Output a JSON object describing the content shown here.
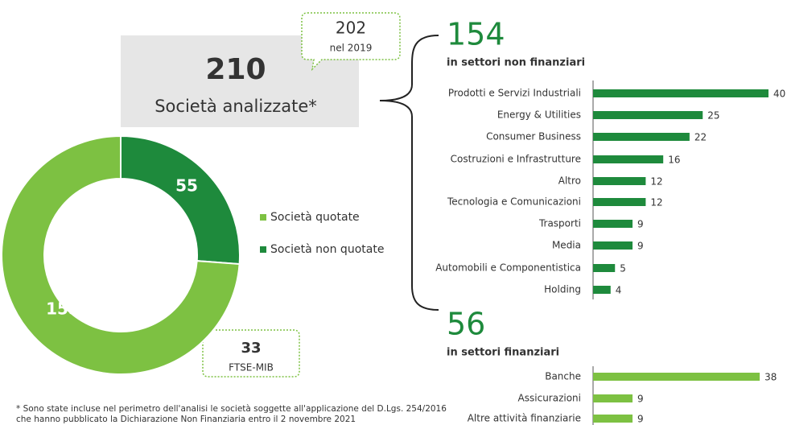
{
  "total": {
    "value": 210,
    "label": "Società analizzate*"
  },
  "comparison": {
    "value": 202,
    "label": "nel 2019"
  },
  "ftse": {
    "value": 33,
    "label": "FTSE-MIB"
  },
  "footnote": [
    "* Sono state incluse nel perimetro dell'analisi le società soggette all'applicazione del D.Lgs. 254/2016",
    "che hanno pubblicato la Dichiarazione Non Finanziaria entro il 2 novembre 2021"
  ],
  "chart_data": [
    {
      "type": "pie",
      "donut": true,
      "categories": [
        "Società quotate",
        "Società non quotate"
      ],
      "values": [
        155,
        55
      ],
      "colors": [
        "#7dc142",
        "#1e8a3c"
      ]
    },
    {
      "type": "bar",
      "orientation": "horizontal",
      "title": "154",
      "subtitle": "in settori non finanziari",
      "categories": [
        "Prodotti e Servizi Industriali",
        "Energy & Utilities",
        "Consumer Business",
        "Costruzioni e Infrastrutture",
        "Altro",
        "Tecnologia e Comunicazioni",
        "Trasporti",
        "Media",
        "Automobili e Componentistica",
        "Holding"
      ],
      "values": [
        40,
        25,
        22,
        16,
        12,
        12,
        9,
        9,
        5,
        4
      ],
      "color": "#1e8a3c"
    },
    {
      "type": "bar",
      "orientation": "horizontal",
      "title": "56",
      "subtitle": "in settori finanziari",
      "categories": [
        "Banche",
        "Assicurazioni",
        "Altre attività finanziarie"
      ],
      "values": [
        38,
        9,
        9
      ],
      "color": "#7dc142"
    }
  ]
}
